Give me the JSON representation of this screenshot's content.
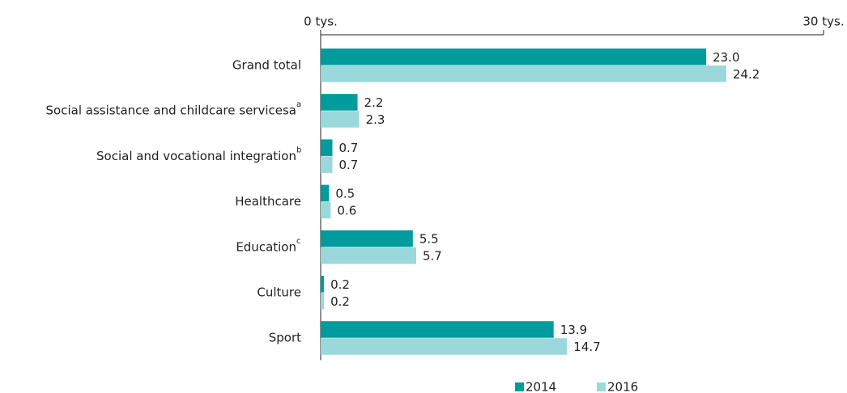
{
  "chart_data": {
    "type": "hbar",
    "categories": [
      "Grand total",
      "Social assistance and childcare servicesa",
      "Social and vocational integration",
      "Healthcare",
      "Education",
      "Culture",
      "Sport"
    ],
    "category_notes": [
      null,
      "a",
      "b",
      null,
      "c",
      null,
      null
    ],
    "series": [
      {
        "name": "2014",
        "color": "#009b9c",
        "values": [
          23.0,
          2.2,
          0.7,
          0.5,
          5.5,
          0.2,
          13.9
        ],
        "value_labels": [
          "23.0",
          "2.2",
          "0.7",
          "0.5",
          "5.5",
          "0.2",
          "13.9"
        ]
      },
      {
        "name": "2016",
        "color": "#9ad8db",
        "values": [
          24.2,
          2.3,
          0.7,
          0.6,
          5.7,
          0.2,
          14.7
        ],
        "value_labels": [
          "24.2",
          "2.3",
          "0.7",
          "0.6",
          "5.7",
          "0.2",
          "14.7"
        ]
      }
    ],
    "xlim": [
      0,
      30
    ],
    "xticks": [
      {
        "value": 0,
        "label": "0 tys."
      },
      {
        "value": 30,
        "label": "30 tys."
      }
    ],
    "legend": "bottom"
  }
}
